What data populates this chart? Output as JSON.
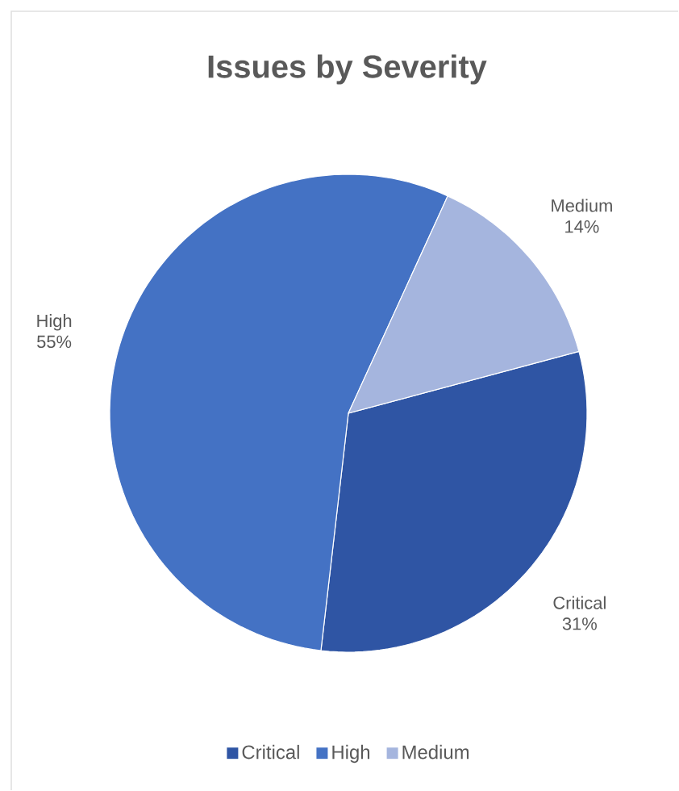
{
  "chart_data": {
    "type": "pie",
    "title": "Issues by Severity",
    "categories": [
      "Critical",
      "High",
      "Medium"
    ],
    "values": [
      31,
      55,
      14
    ],
    "colors": [
      "#2f55a4",
      "#4472c4",
      "#a5b5de"
    ],
    "value_labels": [
      "31%",
      "55%",
      "14%"
    ],
    "legend": "bottom"
  }
}
